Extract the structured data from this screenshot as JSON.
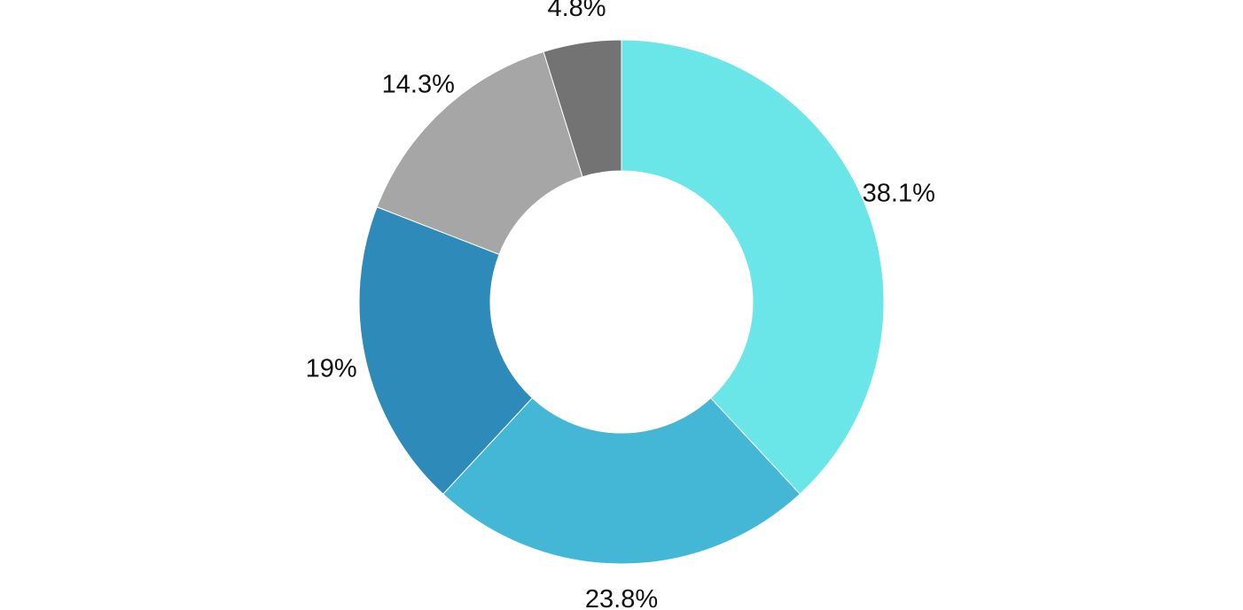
{
  "chart_data": {
    "type": "pie",
    "variant": "donut",
    "title": "",
    "slices": [
      {
        "value": 38.1,
        "label": "38.1%",
        "color": "#6ae5e8"
      },
      {
        "value": 23.8,
        "label": "23.8%",
        "color": "#43b7d5"
      },
      {
        "value": 19,
        "label": "19%",
        "color": "#2e8bb9"
      },
      {
        "value": 14.3,
        "label": "14.3%",
        "color": "#a6a6a6"
      },
      {
        "value": 4.8,
        "label": "4.8%",
        "color": "#737373"
      }
    ],
    "legend": "none",
    "start_angle_deg": 0,
    "direction": "clockwise"
  }
}
